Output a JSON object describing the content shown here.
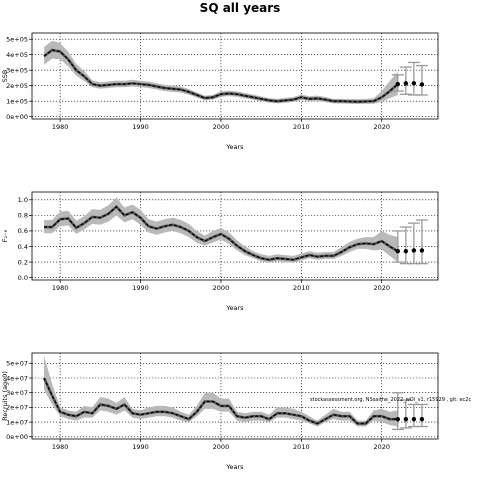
{
  "figure": {
    "title": "SQ all years",
    "footnote": "stockassessment.org, NSsaithe_2022_wOl_v1, r15929 , git: ec2c"
  },
  "chart_data": [
    {
      "type": "line",
      "ylabel": "SSB",
      "xlabel": "Years",
      "xlim": [
        1976.5,
        2027
      ],
      "ylim": [
        -15000,
        540000
      ],
      "x_ticks": [
        1980,
        1990,
        2000,
        2010,
        2020
      ],
      "y_ticks": [
        0,
        100000,
        200000,
        300000,
        400000,
        500000
      ],
      "y_tick_labels": [
        "0e+00",
        "1e+05",
        "2e+05",
        "3e+05",
        "4e+05",
        "5e+05"
      ],
      "grid": true,
      "years": [
        1978,
        1979,
        1980,
        1981,
        1982,
        1983,
        1984,
        1985,
        1986,
        1987,
        1988,
        1989,
        1990,
        1991,
        1992,
        1993,
        1994,
        1995,
        1996,
        1997,
        1998,
        1999,
        2000,
        2001,
        2002,
        2003,
        2004,
        2005,
        2006,
        2007,
        2008,
        2009,
        2010,
        2011,
        2012,
        2013,
        2014,
        2015,
        2016,
        2017,
        2018,
        2019,
        2020,
        2021,
        2022
      ],
      "estimate": [
        390000,
        430000,
        420000,
        370000,
        300000,
        260000,
        210000,
        200000,
        205000,
        210000,
        210000,
        215000,
        210000,
        205000,
        195000,
        185000,
        180000,
        175000,
        160000,
        140000,
        120000,
        125000,
        145000,
        150000,
        145000,
        135000,
        125000,
        115000,
        105000,
        100000,
        105000,
        110000,
        125000,
        115000,
        118000,
        110000,
        100000,
        100000,
        98000,
        97000,
        98000,
        100000,
        125000,
        165000,
        210000
      ],
      "lower": [
        335000,
        375000,
        370000,
        325000,
        265000,
        230000,
        190000,
        180000,
        185000,
        190000,
        190000,
        195000,
        190000,
        185000,
        175000,
        165000,
        160000,
        155000,
        142000,
        124000,
        106000,
        110000,
        128000,
        133000,
        128000,
        118000,
        109000,
        100000,
        91000,
        86000,
        90000,
        95000,
        108000,
        99000,
        101000,
        94000,
        86000,
        85000,
        83000,
        82000,
        83000,
        83000,
        95000,
        120000,
        140000
      ],
      "upper": [
        450000,
        490000,
        475000,
        420000,
        340000,
        295000,
        235000,
        222000,
        228000,
        233000,
        232000,
        238000,
        232000,
        226000,
        216000,
        205000,
        200000,
        195000,
        179000,
        157000,
        135000,
        141000,
        163000,
        168000,
        163000,
        152000,
        142000,
        131000,
        120000,
        115000,
        121000,
        126000,
        143000,
        132000,
        136000,
        127000,
        115000,
        116000,
        114000,
        113000,
        115000,
        120000,
        165000,
        230000,
        290000
      ],
      "forecast_x": [
        2022,
        2023,
        2024,
        2025
      ],
      "forecast_median": [
        210000,
        215000,
        215000,
        208000
      ],
      "forecast_lower": [
        165000,
        145000,
        140000,
        140000
      ],
      "forecast_upper": [
        270000,
        320000,
        350000,
        330000
      ]
    },
    {
      "type": "line",
      "ylabel": "F₂₋₆",
      "xlabel": "Years",
      "xlim": [
        1976.5,
        2027
      ],
      "ylim": [
        -0.03,
        1.1
      ],
      "x_ticks": [
        1980,
        1990,
        2000,
        2010,
        2020
      ],
      "y_ticks": [
        0.0,
        0.2,
        0.4,
        0.6,
        0.8,
        1.0
      ],
      "y_tick_labels": [
        "0.0",
        "0.2",
        "0.4",
        "0.6",
        "0.8",
        "1.0"
      ],
      "grid": true,
      "years": [
        1978,
        1979,
        1980,
        1981,
        1982,
        1983,
        1984,
        1985,
        1986,
        1987,
        1988,
        1989,
        1990,
        1991,
        1992,
        1993,
        1994,
        1995,
        1996,
        1997,
        1998,
        1999,
        2000,
        2001,
        2002,
        2003,
        2004,
        2005,
        2006,
        2007,
        2008,
        2009,
        2010,
        2011,
        2012,
        2013,
        2014,
        2015,
        2016,
        2017,
        2018,
        2019,
        2020,
        2021,
        2022
      ],
      "estimate": [
        0.65,
        0.65,
        0.75,
        0.76,
        0.64,
        0.7,
        0.78,
        0.77,
        0.82,
        0.91,
        0.8,
        0.84,
        0.77,
        0.66,
        0.63,
        0.66,
        0.68,
        0.65,
        0.6,
        0.52,
        0.47,
        0.52,
        0.56,
        0.5,
        0.41,
        0.34,
        0.29,
        0.25,
        0.23,
        0.25,
        0.24,
        0.23,
        0.26,
        0.29,
        0.27,
        0.28,
        0.28,
        0.33,
        0.39,
        0.43,
        0.44,
        0.43,
        0.47,
        0.4,
        0.34
      ],
      "lower": [
        0.57,
        0.57,
        0.66,
        0.67,
        0.56,
        0.62,
        0.69,
        0.68,
        0.72,
        0.8,
        0.71,
        0.75,
        0.68,
        0.58,
        0.55,
        0.58,
        0.6,
        0.57,
        0.52,
        0.45,
        0.41,
        0.45,
        0.49,
        0.43,
        0.35,
        0.29,
        0.25,
        0.21,
        0.19,
        0.21,
        0.2,
        0.19,
        0.22,
        0.25,
        0.23,
        0.24,
        0.24,
        0.28,
        0.33,
        0.37,
        0.37,
        0.35,
        0.36,
        0.28,
        0.2
      ],
      "upper": [
        0.74,
        0.74,
        0.85,
        0.86,
        0.73,
        0.79,
        0.88,
        0.87,
        0.93,
        1.03,
        0.9,
        0.94,
        0.87,
        0.75,
        0.72,
        0.75,
        0.77,
        0.74,
        0.69,
        0.6,
        0.54,
        0.6,
        0.64,
        0.58,
        0.48,
        0.4,
        0.34,
        0.3,
        0.28,
        0.3,
        0.29,
        0.28,
        0.31,
        0.34,
        0.32,
        0.33,
        0.33,
        0.39,
        0.46,
        0.5,
        0.52,
        0.52,
        0.6,
        0.55,
        0.52
      ],
      "forecast_x": [
        2022,
        2023,
        2024,
        2025
      ],
      "forecast_median": [
        0.34,
        0.34,
        0.35,
        0.35
      ],
      "forecast_lower": [
        0.2,
        0.18,
        0.18,
        0.18
      ],
      "forecast_upper": [
        0.6,
        0.65,
        0.7,
        0.74
      ]
    },
    {
      "type": "line",
      "ylabel": "Recruits (age0)",
      "xlabel": "Years",
      "xlim": [
        1976.5,
        2027
      ],
      "ylim": [
        -1500000,
        57000000
      ],
      "x_ticks": [
        1980,
        1990,
        2000,
        2010,
        2020
      ],
      "y_ticks": [
        0,
        10000000,
        20000000,
        30000000,
        40000000,
        50000000
      ],
      "y_tick_labels": [
        "0e+00",
        "1e+07",
        "2e+07",
        "3e+07",
        "4e+07",
        "5e+07"
      ],
      "grid": true,
      "years": [
        1978,
        1979,
        1980,
        1981,
        1982,
        1983,
        1984,
        1985,
        1986,
        1987,
        1988,
        1989,
        1990,
        1991,
        1992,
        1993,
        1994,
        1995,
        1996,
        1997,
        1998,
        1999,
        2000,
        2001,
        2002,
        2003,
        2004,
        2005,
        2006,
        2007,
        2008,
        2009,
        2010,
        2011,
        2012,
        2013,
        2014,
        2015,
        2016,
        2017,
        2018,
        2019,
        2020,
        2021,
        2022
      ],
      "estimate": [
        40000000,
        28000000,
        17000000,
        15000000,
        14000000,
        17000000,
        16000000,
        22000000,
        21000000,
        19000000,
        22000000,
        16000000,
        15000000,
        16000000,
        17000000,
        17000000,
        16000000,
        14000000,
        12000000,
        17000000,
        24000000,
        24000000,
        21000000,
        21000000,
        14000000,
        13000000,
        14000000,
        14000000,
        12000000,
        16000000,
        16000000,
        15000000,
        14000000,
        11000000,
        9000000,
        12000000,
        15000000,
        14000000,
        14000000,
        9000000,
        9000000,
        14000000,
        14000000,
        12000000,
        12000000
      ],
      "lower": [
        32000000,
        22000000,
        14000000,
        12000000,
        11000000,
        13000000,
        13000000,
        18000000,
        17000000,
        15000000,
        18000000,
        13000000,
        12000000,
        13000000,
        14000000,
        14000000,
        13000000,
        11000000,
        10000000,
        14000000,
        19000000,
        19000000,
        17000000,
        17000000,
        11000000,
        10000000,
        11000000,
        11000000,
        10000000,
        13000000,
        13000000,
        12000000,
        11000000,
        9000000,
        7000000,
        10000000,
        12000000,
        11000000,
        11000000,
        7000000,
        7000000,
        11000000,
        10000000,
        8000000,
        7000000
      ],
      "upper": [
        55000000,
        36000000,
        20000000,
        18000000,
        17000000,
        21000000,
        20000000,
        27000000,
        26000000,
        23000000,
        27000000,
        19000000,
        18000000,
        20000000,
        21000000,
        21000000,
        20000000,
        17000000,
        15000000,
        21000000,
        30000000,
        30000000,
        26000000,
        26000000,
        17000000,
        16000000,
        17000000,
        17000000,
        15000000,
        20000000,
        20000000,
        19000000,
        17000000,
        14000000,
        11000000,
        15000000,
        19000000,
        17000000,
        17000000,
        11000000,
        11000000,
        18000000,
        19000000,
        17000000,
        18000000
      ],
      "forecast_x": [
        2022,
        2023,
        2024,
        2025
      ],
      "forecast_median": [
        12000000,
        12000000,
        12000000,
        12000000
      ],
      "forecast_lower": [
        5000000,
        6000000,
        7000000,
        7000000
      ],
      "forecast_upper": [
        30000000,
        25000000,
        22000000,
        22000000
      ]
    }
  ]
}
